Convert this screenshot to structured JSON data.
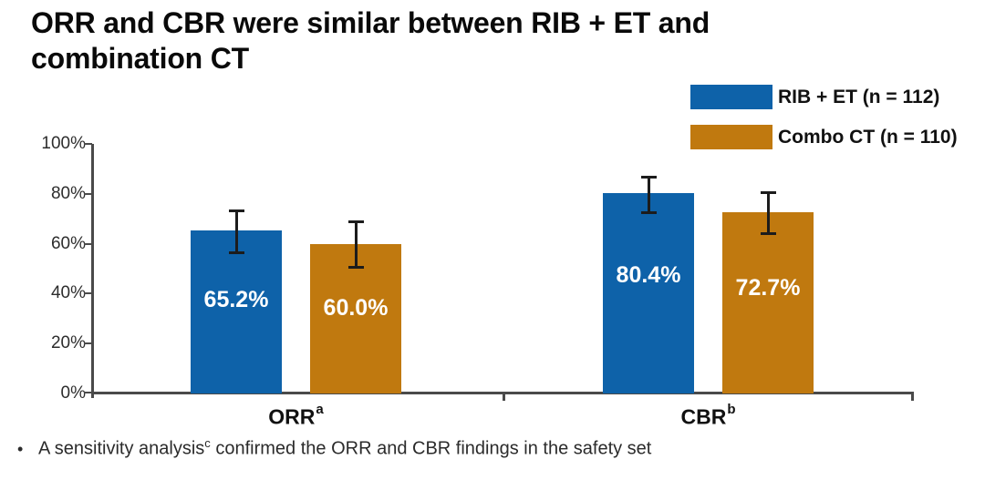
{
  "slide": {
    "title_line1": "ORR and CBR were similar between RIB + ET and",
    "title_line2": "combination CT"
  },
  "chart_data": {
    "type": "bar",
    "title": "ORR and CBR were similar between RIB + ET and combination CT",
    "categories": [
      "ORR",
      "CBR"
    ],
    "category_superscripts": [
      "a",
      "b"
    ],
    "series": [
      {
        "name": "RIB + ET (n = 112)",
        "color": "#0E62A9",
        "values": [
          65.2,
          80.4
        ],
        "value_labels": [
          "65.2%",
          "80.4%"
        ],
        "error_low": [
          55.7,
          71.8
        ],
        "error_high": [
          73.7,
          87.4
        ]
      },
      {
        "name": "Combo CT (n = 110)",
        "color": "#C0790F",
        "values": [
          60.0,
          72.7
        ],
        "value_labels": [
          "60.0%",
          "72.7%"
        ],
        "error_low": [
          50.2,
          63.4
        ],
        "error_high": [
          69.3,
          81.0
        ]
      }
    ],
    "xlabel": "",
    "ylabel": "",
    "ylim": [
      0,
      100
    ],
    "yticks": [
      "100%",
      "80%",
      "60%",
      "40%",
      "20%",
      "0%"
    ],
    "grid": false,
    "legend_position": "top-right",
    "error_bars": true
  },
  "footnote": {
    "bullet": "•",
    "pre": "A sensitivity analysis",
    "sup": "c",
    "post": " confirmed the ORR and CBR findings in the safety set"
  }
}
